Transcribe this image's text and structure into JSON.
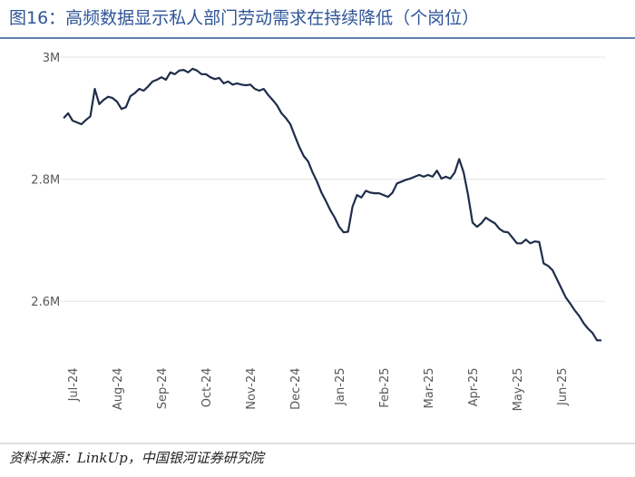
{
  "chart_data": {
    "type": "line",
    "title": "图16：高频数据显示私人部门劳动需求在持续降低（个岗位）",
    "source": "资料来源：LinkUp，中国银河证券研究院",
    "categories": [
      null,
      null,
      "Jul-24",
      null,
      null,
      null,
      null,
      null,
      null,
      null,
      null,
      null,
      "Aug-24",
      null,
      null,
      null,
      null,
      null,
      null,
      null,
      null,
      null,
      "Sep-24",
      null,
      null,
      null,
      null,
      null,
      null,
      null,
      null,
      null,
      "Oct-24",
      null,
      null,
      null,
      null,
      null,
      null,
      null,
      null,
      null,
      "Nov-24",
      null,
      null,
      null,
      null,
      null,
      null,
      null,
      null,
      null,
      "Dec-24",
      null,
      null,
      null,
      null,
      null,
      null,
      null,
      null,
      null,
      "Jan-25",
      null,
      null,
      null,
      null,
      null,
      null,
      null,
      null,
      null,
      "Feb-25",
      null,
      null,
      null,
      null,
      null,
      null,
      null,
      null,
      null,
      "Mar-25",
      null,
      null,
      null,
      null,
      null,
      null,
      null,
      null,
      null,
      "Apr-25",
      null,
      null,
      null,
      null,
      null,
      null,
      null,
      null,
      null,
      "May-25",
      null,
      null,
      null,
      null,
      null,
      null,
      null,
      null,
      null,
      "Jun-25",
      null,
      null,
      null,
      null,
      null,
      null,
      null,
      null,
      null
    ],
    "values": [
      2.9,
      2.908,
      2.896,
      2.893,
      2.89,
      2.897,
      2.903,
      2.948,
      2.923,
      2.93,
      2.935,
      2.933,
      2.927,
      2.915,
      2.918,
      2.936,
      2.941,
      2.948,
      2.945,
      2.952,
      2.96,
      2.963,
      2.967,
      2.963,
      2.975,
      2.972,
      2.978,
      2.979,
      2.975,
      2.981,
      2.978,
      2.972,
      2.972,
      2.967,
      2.964,
      2.966,
      2.957,
      2.96,
      2.955,
      2.957,
      2.955,
      2.954,
      2.955,
      2.948,
      2.945,
      2.948,
      2.938,
      2.93,
      2.921,
      2.908,
      2.9,
      2.89,
      2.871,
      2.853,
      2.838,
      2.829,
      2.811,
      2.796,
      2.778,
      2.764,
      2.749,
      2.737,
      2.722,
      2.713,
      2.714,
      2.755,
      2.774,
      2.77,
      2.781,
      2.778,
      2.777,
      2.777,
      2.774,
      2.771,
      2.778,
      2.793,
      2.796,
      2.799,
      2.801,
      2.804,
      2.807,
      2.804,
      2.807,
      2.804,
      2.814,
      2.801,
      2.804,
      2.801,
      2.811,
      2.833,
      2.811,
      2.774,
      2.729,
      2.722,
      2.728,
      2.737,
      2.732,
      2.728,
      2.719,
      2.714,
      2.713,
      2.704,
      2.695,
      2.695,
      2.701,
      2.695,
      2.698,
      2.697,
      2.662,
      2.658,
      2.651,
      2.636,
      2.621,
      2.606,
      2.596,
      2.585,
      2.576,
      2.564,
      2.555,
      2.548,
      2.536,
      2.536
    ],
    "color": "#1f2d4a",
    "ylim": [
      2.5,
      3.0
    ],
    "yticks": [
      {
        "value": 2.6,
        "label": "2.6M"
      },
      {
        "value": 2.8,
        "label": "2.8M"
      },
      {
        "value": 3.0,
        "label": "3M"
      }
    ],
    "grid": true
  }
}
